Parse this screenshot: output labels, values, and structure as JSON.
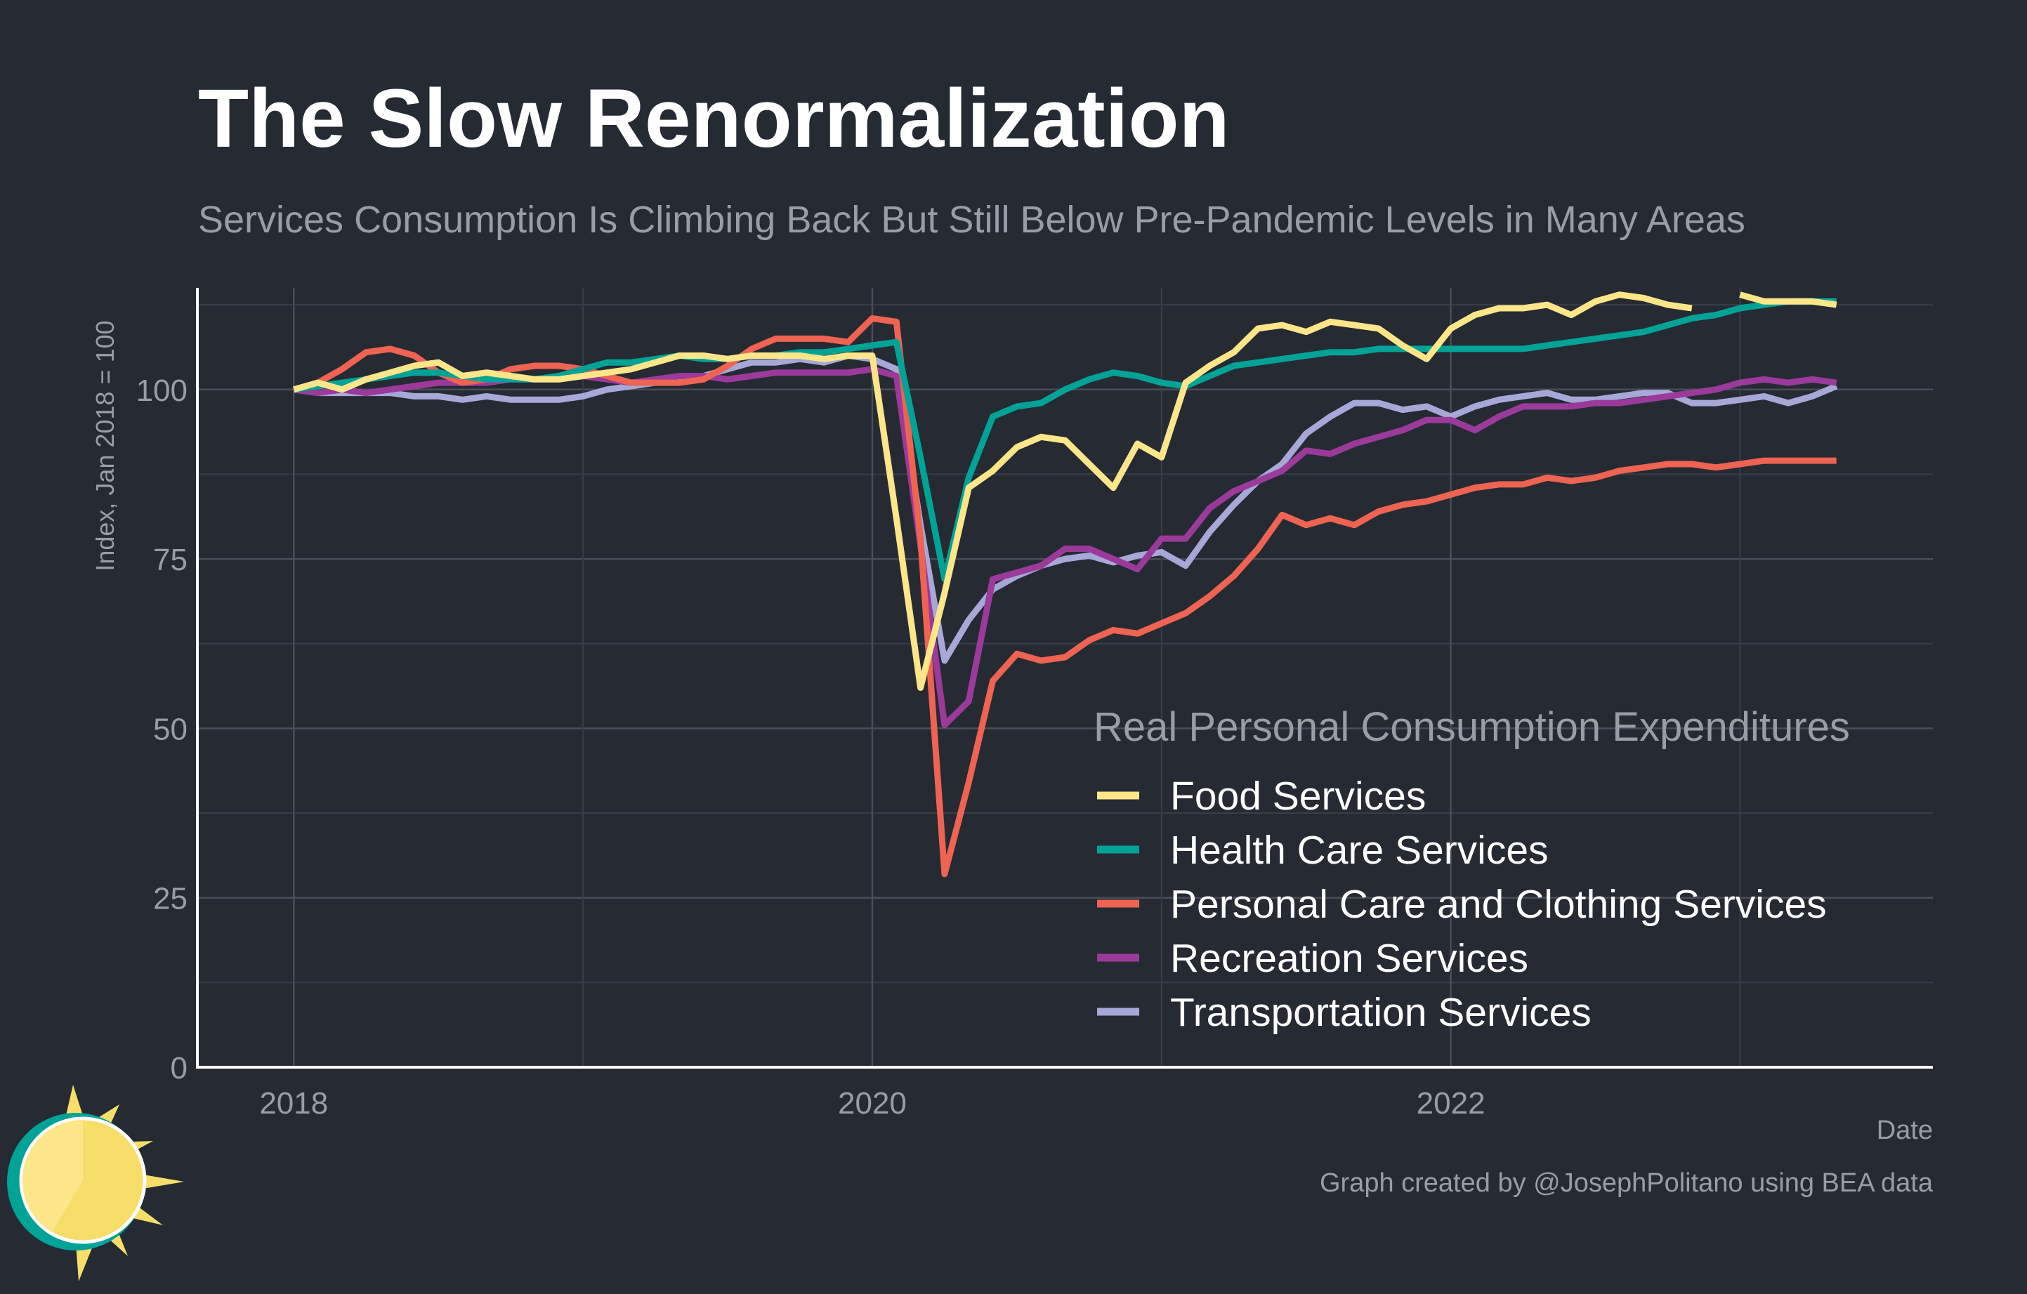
{
  "header": {
    "title": "The Slow Renormalization",
    "subtitle": "Services Consumption Is Climbing Back But Still Below Pre-Pandemic Levels in Many Areas"
  },
  "caption": "Graph created by @JosephPolitano using BEA data",
  "logo": {
    "icon": "sun-logo-icon"
  },
  "chart_data": {
    "type": "line",
    "title": "The Slow Renormalization",
    "subtitle": "Services Consumption Is Climbing Back But Still Below Pre-Pandemic Levels in Many Areas",
    "xlabel": "Date",
    "ylabel": "Index, Jan 2018 = 100",
    "xlim": [
      "2017-09",
      "2023-09"
    ],
    "ylim": [
      0,
      115
    ],
    "xticks": [
      "2018",
      "2020",
      "2022"
    ],
    "yticks": [
      0,
      25,
      50,
      75,
      100
    ],
    "grid": true,
    "legend": {
      "title": "Real Personal Consumption Expenditures",
      "placement": "bottom-right"
    },
    "x": [
      "2018-01",
      "2018-02",
      "2018-03",
      "2018-04",
      "2018-05",
      "2018-06",
      "2018-07",
      "2018-08",
      "2018-09",
      "2018-10",
      "2018-11",
      "2018-12",
      "2019-01",
      "2019-02",
      "2019-03",
      "2019-04",
      "2019-05",
      "2019-06",
      "2019-07",
      "2019-08",
      "2019-09",
      "2019-10",
      "2019-11",
      "2019-12",
      "2020-01",
      "2020-02",
      "2020-03",
      "2020-04",
      "2020-05",
      "2020-06",
      "2020-07",
      "2020-08",
      "2020-09",
      "2020-10",
      "2020-11",
      "2020-12",
      "2021-01",
      "2021-02",
      "2021-03",
      "2021-04",
      "2021-05",
      "2021-06",
      "2021-07",
      "2021-08",
      "2021-09",
      "2021-10",
      "2021-11",
      "2021-12",
      "2022-01",
      "2022-02",
      "2022-03",
      "2022-04",
      "2022-05",
      "2022-06",
      "2022-07",
      "2022-08",
      "2022-09",
      "2022-10",
      "2022-11",
      "2022-12",
      "2023-01",
      "2023-02",
      "2023-03",
      "2023-04",
      "2023-05"
    ],
    "series": [
      {
        "name": "Food Services",
        "color": "#fde68a",
        "values": [
          100,
          101,
          100,
          101.5,
          102.5,
          103.5,
          104,
          102,
          102.5,
          102,
          101.5,
          101.5,
          102,
          102.5,
          103,
          104,
          105,
          105,
          104.5,
          105,
          105,
          105,
          104.5,
          105,
          105,
          81,
          56,
          70,
          85.5,
          88,
          91.5,
          93,
          92.5,
          89,
          85.5,
          92,
          90,
          101,
          103.5,
          105.5,
          109,
          109.5,
          108.5,
          110,
          109.5,
          109,
          106.5,
          104.5,
          109,
          111,
          112,
          112,
          112.5,
          111,
          113,
          114,
          113.5,
          112.5,
          112,
          null,
          114,
          113,
          113,
          113,
          112.5
        ]
      },
      {
        "name": "Health Care Services",
        "color": "#00a396",
        "values": [
          100,
          100.5,
          101,
          101.5,
          102,
          102.5,
          102.5,
          102,
          101.5,
          101.5,
          101.5,
          102,
          103,
          104,
          104,
          104.5,
          105,
          104.5,
          104.5,
          105,
          105,
          105.5,
          105.5,
          106,
          106.5,
          107,
          90,
          72,
          87,
          96,
          97.5,
          98,
          100,
          101.5,
          102.5,
          102,
          101,
          100.5,
          102,
          103.5,
          104,
          104.5,
          105,
          105.5,
          105.5,
          106,
          106,
          106,
          106,
          106,
          106,
          106,
          106.5,
          107,
          107.5,
          108,
          108.5,
          109.5,
          110.5,
          111,
          112,
          112.5,
          113,
          113,
          113
        ]
      },
      {
        "name": "Personal Care and Clothing Services",
        "color": "#ee6352",
        "values": [
          100,
          101,
          103,
          105.5,
          106,
          105,
          102.5,
          101,
          101.5,
          103,
          103.5,
          103.5,
          103,
          102,
          101,
          101,
          101,
          101.5,
          103.5,
          106,
          107.5,
          107.5,
          107.5,
          107,
          110.5,
          110,
          78,
          28.5,
          42,
          57,
          61,
          60,
          60.5,
          63,
          64.5,
          64,
          65.5,
          67,
          69.5,
          72.5,
          76.5,
          81.5,
          80,
          81,
          80,
          82,
          83,
          83.5,
          84.5,
          85.5,
          86,
          86,
          87,
          86.5,
          87,
          88,
          88.5,
          89,
          89,
          88.5,
          89,
          89.5,
          89.5,
          89.5,
          89.5
        ]
      },
      {
        "name": "Recreation Services",
        "color": "#9b3a9b",
        "values": [
          100,
          99.5,
          100,
          99.5,
          100,
          100.5,
          101,
          101,
          101,
          101.5,
          101.5,
          102,
          102,
          101.5,
          101,
          101.5,
          102,
          102,
          101.5,
          102,
          102.5,
          102.5,
          102.5,
          102.5,
          103,
          102,
          77,
          50.5,
          54,
          72,
          73,
          74,
          76.5,
          76.5,
          75,
          73.5,
          78,
          78,
          82.5,
          85,
          86.5,
          88,
          91,
          90.5,
          92,
          93,
          94,
          95.5,
          95.5,
          94,
          96,
          97.5,
          97.5,
          97.5,
          98,
          98,
          98.5,
          99,
          99.5,
          100,
          101,
          101.5,
          101,
          101.5,
          101
        ]
      },
      {
        "name": "Transportation Services",
        "color": "#a7a8d8",
        "values": [
          100,
          99.5,
          99.5,
          99.5,
          99.5,
          99,
          99,
          98.5,
          99,
          98.5,
          98.5,
          98.5,
          99,
          100,
          100.5,
          101,
          101.5,
          102,
          103,
          104,
          104,
          104.5,
          104,
          105,
          104.5,
          103,
          80,
          60,
          66,
          70.5,
          72.5,
          74,
          75,
          75.5,
          74.5,
          75.5,
          76,
          74,
          79,
          83,
          86.5,
          89,
          93.5,
          96,
          98,
          98,
          97,
          97.5,
          96,
          97.5,
          98.5,
          99,
          99.5,
          98.5,
          98.5,
          99,
          99.5,
          99.5,
          98,
          98,
          98.5,
          99,
          98,
          99,
          100.5
        ]
      }
    ]
  }
}
